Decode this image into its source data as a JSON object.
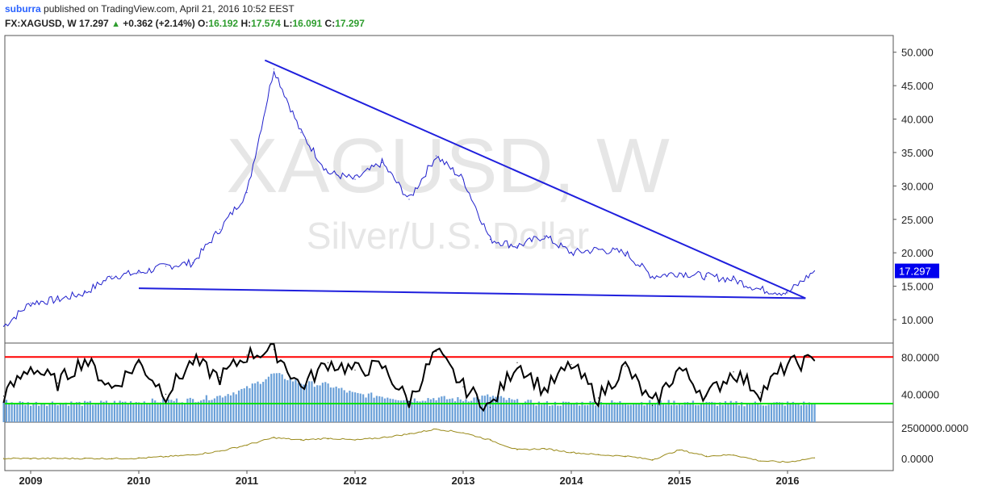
{
  "header": {
    "author": "suburra",
    "published_text": "published on TradingView.com, April 21, 2016 10:52 EEST",
    "symbol": "FX:XAGUSD, W",
    "last": "17.297",
    "change": "+0.362 (+2.14%)",
    "o_label": "O:",
    "o_value": "16.192",
    "h_label": "H:",
    "h_value": "17.574",
    "l_label": "L:",
    "l_value": "16.091",
    "c_label": "C:",
    "c_value": "17.297"
  },
  "watermark": {
    "symbol": "XAGUSD, W",
    "name": "Silver/U.S. Dollar"
  },
  "colors": {
    "price_line": "#1f1fcc",
    "trendline": "#1f1fdd",
    "rsi_line": "#000000",
    "upper_level": "#ff0000",
    "lower_level": "#00e000",
    "volume_bars": "#6aa0d8",
    "bottom_line": "#9a8a1a",
    "price_tag_bg": "#0000ee"
  },
  "chart_data": [
    {
      "type": "line",
      "pane": "price",
      "ylim": [
        6.5,
        52.5
      ],
      "y_ticks": [
        "50.000",
        "45.000",
        "40.000",
        "35.000",
        "30.000",
        "25.000",
        "20.000",
        "15.000",
        "10.000"
      ],
      "last_value_label": "17.297",
      "x": [
        "2008-10",
        "2009-01",
        "2009-04",
        "2009-07",
        "2009-10",
        "2010-01",
        "2010-04",
        "2010-07",
        "2010-10",
        "2011-01",
        "2011-04",
        "2011-07",
        "2011-10",
        "2012-01",
        "2012-04",
        "2012-07",
        "2012-10",
        "2013-01",
        "2013-04",
        "2013-07",
        "2013-10",
        "2014-01",
        "2014-04",
        "2014-07",
        "2014-10",
        "2015-01",
        "2015-04",
        "2015-07",
        "2015-10",
        "2016-01",
        "2016-04"
      ],
      "values": [
        9.0,
        12.5,
        13.0,
        14.0,
        16.5,
        17.0,
        18.0,
        18.5,
        23.5,
        29.0,
        47.5,
        38.0,
        32.0,
        31.0,
        33.5,
        28.0,
        34.5,
        31.0,
        22.0,
        21.0,
        22.5,
        20.0,
        20.5,
        20.0,
        16.5,
        17.0,
        16.5,
        16.0,
        14.5,
        14.0,
        17.3
      ],
      "trendlines": [
        {
          "from": [
            "2011-03",
            48.8
          ],
          "to": [
            "2016-03",
            13.2
          ]
        },
        {
          "from": [
            "2010-01",
            14.7
          ],
          "to": [
            "2016-03",
            13.2
          ]
        }
      ]
    },
    {
      "type": "line",
      "pane": "oscillator",
      "y_ticks": [
        "80.0000",
        "40.0000"
      ],
      "levels": [
        80,
        30
      ],
      "x": [
        "2008-10",
        "2009-01",
        "2009-04",
        "2009-07",
        "2009-10",
        "2010-01",
        "2010-04",
        "2010-07",
        "2010-10",
        "2011-01",
        "2011-04",
        "2011-07",
        "2011-10",
        "2012-01",
        "2012-04",
        "2012-07",
        "2012-10",
        "2013-01",
        "2013-04",
        "2013-07",
        "2013-10",
        "2014-01",
        "2014-04",
        "2014-07",
        "2014-10",
        "2015-01",
        "2015-04",
        "2015-07",
        "2015-10",
        "2016-01",
        "2016-04"
      ],
      "values": [
        38,
        70,
        52,
        78,
        46,
        74,
        40,
        76,
        58,
        82,
        88,
        48,
        74,
        66,
        70,
        32,
        86,
        48,
        26,
        74,
        44,
        72,
        36,
        70,
        28,
        68,
        38,
        64,
        42,
        72,
        76
      ],
      "volume": [
        32,
        30,
        31,
        30,
        31,
        32,
        33,
        34,
        38,
        46,
        62,
        52,
        50,
        40,
        38,
        34,
        36,
        34,
        38,
        32,
        30,
        30,
        31,
        31,
        31,
        31,
        30,
        30,
        30,
        30,
        30
      ]
    },
    {
      "type": "line",
      "pane": "bottom",
      "y_ticks": [
        "2500000.0000",
        "0.0000"
      ],
      "x": [
        "2008-10",
        "2009-01",
        "2009-04",
        "2009-07",
        "2009-10",
        "2010-01",
        "2010-04",
        "2010-07",
        "2010-10",
        "2011-01",
        "2011-04",
        "2011-07",
        "2011-10",
        "2012-01",
        "2012-04",
        "2012-07",
        "2012-10",
        "2013-01",
        "2013-04",
        "2013-07",
        "2013-10",
        "2014-01",
        "2014-04",
        "2014-07",
        "2014-10",
        "2015-01",
        "2015-04",
        "2015-07",
        "2015-10",
        "2016-01",
        "2016-04"
      ],
      "values": [
        0,
        0,
        0,
        0,
        0,
        20000,
        150000,
        300000,
        600000,
        1100000,
        1700000,
        1500000,
        1650000,
        1500000,
        1700000,
        2000000,
        2400000,
        2100000,
        1500000,
        700000,
        800000,
        500000,
        300000,
        200000,
        -100000,
        700000,
        200000,
        300000,
        -200000,
        -300000,
        50000
      ]
    }
  ],
  "x_axis": {
    "labels": [
      "2009",
      "2010",
      "2011",
      "2012",
      "2013",
      "2014",
      "2015",
      "2016"
    ]
  }
}
